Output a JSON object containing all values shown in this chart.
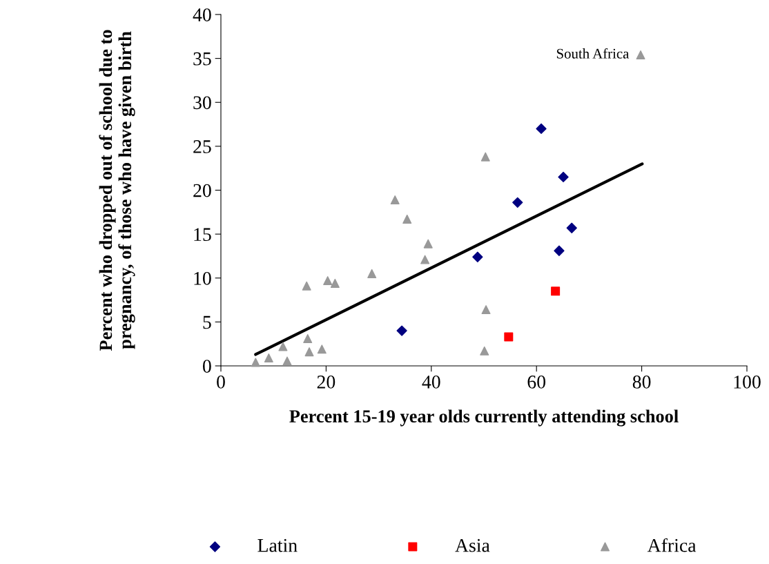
{
  "chart_data": {
    "type": "scatter",
    "xlabel": "Percent 15-19 year olds currently attending school",
    "ylabel": "Percent who dropped out of school due to\npregnancy, of those who have given birth",
    "xlim": [
      0,
      100
    ],
    "xticks": [
      0,
      20,
      40,
      60,
      80,
      100
    ],
    "ylim": [
      0,
      40
    ],
    "yticks": [
      0,
      5,
      10,
      15,
      20,
      25,
      30,
      35,
      40
    ],
    "grid": false,
    "legend": "bottom",
    "annotations": [
      {
        "text": "South Africa",
        "x": 79.8,
        "y": 35.4
      }
    ],
    "series": [
      {
        "name": "Latin",
        "color": "#000080",
        "marker": "diamond",
        "x": [
          34.4,
          48.8,
          56.4,
          60.9,
          65.1,
          64.3,
          66.7
        ],
        "values": [
          4.0,
          12.4,
          18.6,
          27.0,
          21.5,
          13.1,
          15.7
        ]
      },
      {
        "name": "Asia",
        "color": "#ff0000",
        "marker": "square",
        "x": [
          54.7,
          63.6
        ],
        "values": [
          3.3,
          8.5
        ]
      },
      {
        "name": "Africa",
        "color": "#999999",
        "marker": "triangle",
        "x": [
          6.6,
          9.1,
          11.8,
          12.6,
          16.5,
          16.8,
          19.2,
          16.3,
          20.3,
          21.7,
          28.7,
          33.1,
          35.4,
          39.4,
          38.8,
          50.3,
          50.4,
          50.1,
          79.8
        ],
        "values": [
          0.4,
          0.9,
          2.2,
          0.55,
          3.1,
          1.6,
          1.9,
          9.1,
          9.7,
          9.4,
          10.5,
          18.9,
          16.7,
          13.9,
          12.1,
          23.8,
          6.4,
          1.7,
          35.4
        ]
      },
      {
        "type": "line",
        "color": "#000000",
        "line_style": "solid",
        "x": [
          6.6,
          80.1
        ],
        "values": [
          1.3,
          23.0
        ]
      }
    ]
  }
}
